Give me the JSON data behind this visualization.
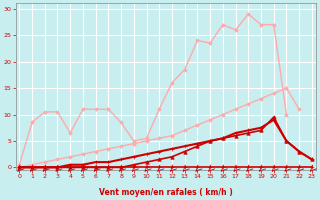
{
  "background_color": "#c8eef0",
  "grid_color": "#aaaaaa",
  "xlabel": "Vent moyen/en rafales ( km/h )",
  "xlabel_color": "#cc0000",
  "tick_color": "#cc0000",
  "x_ticks": [
    0,
    1,
    2,
    3,
    4,
    5,
    6,
    7,
    8,
    9,
    10,
    11,
    12,
    13,
    14,
    15,
    16,
    17,
    18,
    19,
    20,
    21,
    22,
    23
  ],
  "y_ticks": [
    0,
    5,
    10,
    15,
    20,
    25,
    30
  ],
  "ylim": [
    -0.5,
    31
  ],
  "xlim": [
    -0.3,
    23.3
  ],
  "series": [
    {
      "x": [
        0,
        1,
        2,
        3,
        4,
        5,
        6,
        7,
        8,
        9,
        10,
        11,
        12,
        13,
        14,
        15,
        16,
        17,
        18,
        19,
        20,
        21,
        22,
        23
      ],
      "y": [
        0,
        0.5,
        1,
        1.5,
        2,
        2.5,
        3,
        3.5,
        4,
        4.5,
        5,
        5.5,
        6,
        7,
        8,
        9,
        10,
        11,
        12,
        13,
        14,
        15,
        11,
        null
      ],
      "color": "#ffaaaa",
      "marker": "D",
      "markersize": 1.8,
      "linewidth": 1.0
    },
    {
      "x": [
        0,
        1,
        2,
        3,
        4,
        5,
        6,
        7,
        8,
        9,
        10,
        11,
        12,
        13,
        14,
        15,
        16,
        17,
        18,
        19,
        20,
        21,
        22,
        23
      ],
      "y": [
        0.5,
        8.5,
        10.5,
        10.5,
        6.5,
        11,
        11,
        11,
        8.5,
        5,
        5.5,
        11,
        16,
        18.5,
        24,
        23.5,
        27,
        26,
        29,
        27,
        27,
        10,
        null,
        null
      ],
      "color": "#ffaaaa",
      "marker": "D",
      "markersize": 1.8,
      "linewidth": 1.0
    },
    {
      "x": [
        0,
        1,
        2,
        3,
        4,
        5,
        6,
        7,
        8,
        9,
        10,
        11,
        12,
        13,
        14,
        15,
        16,
        17,
        18,
        19,
        20,
        21,
        22,
        23
      ],
      "y": [
        0,
        0,
        0,
        0,
        0,
        0,
        0,
        0,
        0,
        0,
        0,
        0,
        0,
        0,
        0,
        0,
        0,
        0,
        0,
        0,
        0,
        0,
        0,
        0
      ],
      "color": "#cc0000",
      "marker": "+",
      "markersize": 3,
      "linewidth": 1.2
    },
    {
      "x": [
        0,
        1,
        2,
        3,
        4,
        5,
        6,
        7,
        8,
        9,
        10,
        11,
        12,
        13,
        14,
        15,
        16,
        17,
        18,
        19,
        20,
        21,
        22,
        23
      ],
      "y": [
        0,
        0,
        0,
        0,
        0.5,
        0.5,
        1,
        1,
        1.5,
        2,
        2.5,
        3,
        3.5,
        4,
        4.5,
        5,
        5.5,
        6.5,
        7,
        7.5,
        9,
        5,
        3,
        1.5
      ],
      "color": "#cc0000",
      "marker": "+",
      "markersize": 3,
      "linewidth": 1.5
    },
    {
      "x": [
        0,
        1,
        2,
        3,
        4,
        5,
        6,
        7,
        8,
        9,
        10,
        11,
        12,
        13,
        14,
        15,
        16,
        17,
        18,
        19,
        20,
        21,
        22,
        23
      ],
      "y": [
        0,
        0,
        0,
        0,
        0,
        0,
        0,
        0,
        0,
        0.5,
        1,
        1.5,
        2,
        3,
        4,
        5,
        5.5,
        6,
        6.5,
        7,
        9.5,
        5,
        3,
        1.5
      ],
      "color": "#cc0000",
      "marker": "^",
      "markersize": 2.5,
      "linewidth": 1.2
    }
  ],
  "wind_arrows": [
    0,
    1,
    2,
    3,
    4,
    5,
    6,
    7,
    8,
    9,
    10,
    11,
    12,
    13,
    14,
    15,
    16,
    17,
    18,
    19,
    20,
    21,
    22,
    23
  ],
  "wind_arrow_color": "#cc0000"
}
